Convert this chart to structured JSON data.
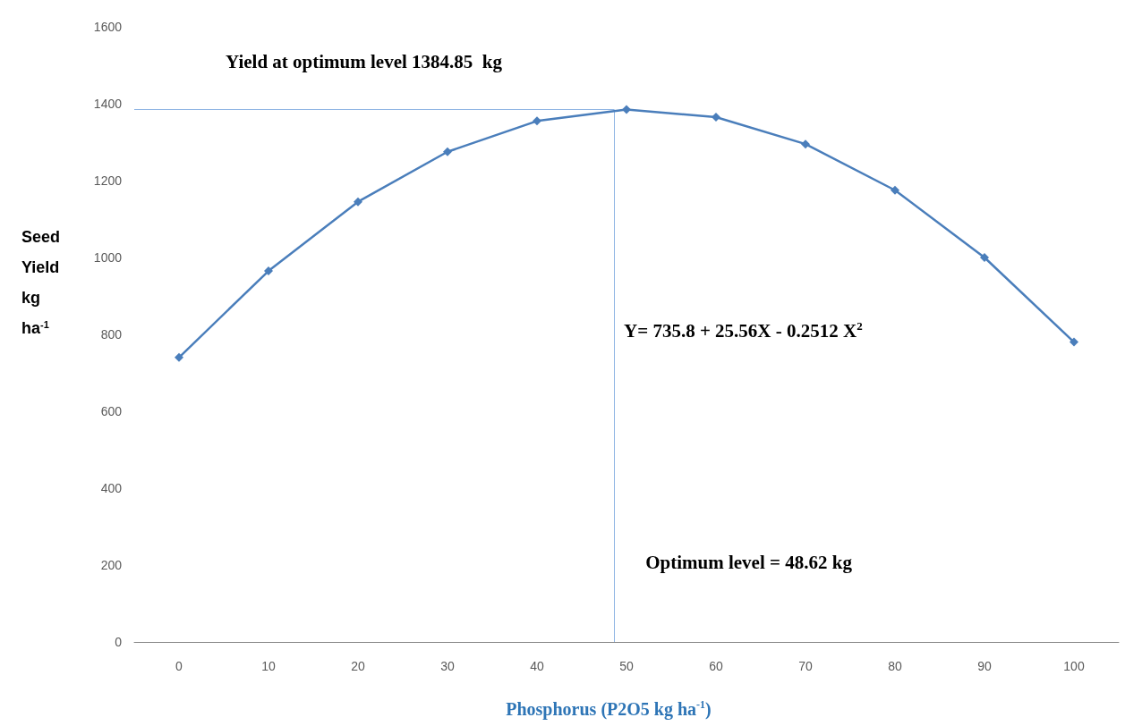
{
  "chart_data": {
    "type": "line",
    "xlabel": "Phosphorus (P2O5 kg ha$^{-1}$)",
    "ylabel": "Seed Yield kg ha$^{-1}$",
    "x": [
      0,
      10,
      20,
      30,
      40,
      50,
      60,
      70,
      80,
      90,
      100
    ],
    "series": [
      {
        "color": "#4a7ebb",
        "values": [
          740,
          965,
          1145,
          1275,
          1355,
          1385,
          1365,
          1295,
          1175,
          1000,
          780
        ]
      }
    ],
    "xlim": [
      -5,
      105
    ],
    "xticks": [
      0,
      10,
      20,
      30,
      40,
      50,
      60,
      70,
      80,
      90,
      100
    ],
    "ylim": [
      0,
      1600
    ],
    "yticks": [
      0,
      200,
      400,
      600,
      800,
      1000,
      1200,
      1400,
      1600
    ],
    "grid": false,
    "marker": "diamond",
    "line_style": "solid",
    "ref_lines": [
      {
        "axis": "x",
        "value": 48.62,
        "label": "Optimum level = 48.62 kg",
        "color": "#8eb4e3"
      },
      {
        "axis": "y",
        "value": 1384.85,
        "label": "Yield at optimum level 1384.85  kg",
        "color": "#8eb4e3"
      }
    ],
    "annotations": [
      "Y= 735.8 + 25.56X - 0.2512 X$^{2}$"
    ]
  }
}
